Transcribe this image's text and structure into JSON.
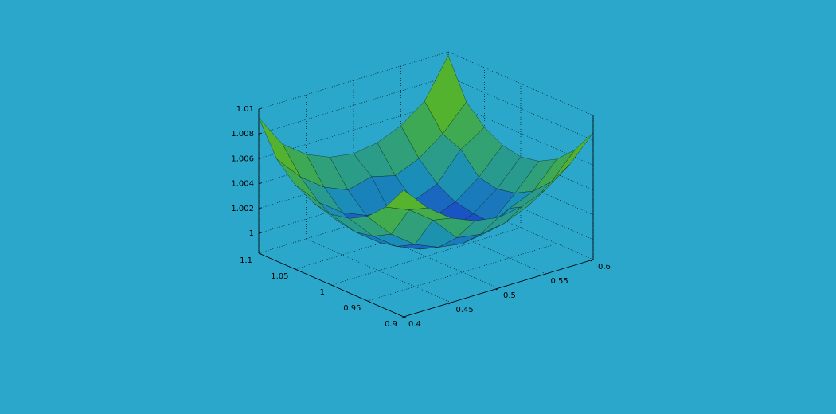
{
  "chart_data": {
    "type": "surface",
    "x": [
      0.4,
      0.425,
      0.45,
      0.475,
      0.5,
      0.525,
      0.55,
      0.575,
      0.6
    ],
    "y": [
      0.9,
      0.925,
      0.95,
      0.975,
      1,
      1.025,
      1.05,
      1.075,
      1.1
    ],
    "z": [
      [
        1.0086,
        1.0066,
        1.0052,
        1.0044,
        1.0041,
        1.0044,
        1.0052,
        1.0066,
        1.0086
      ],
      [
        1.0066,
        1.0058,
        1.0044,
        1.0024,
        1.0021,
        1.0024,
        1.0032,
        1.0046,
        1.0066
      ],
      [
        1.0052,
        1.0032,
        1.0018,
        1.001,
        1.0007,
        1.001,
        1.0024,
        1.0032,
        1.0052
      ],
      [
        1.0044,
        1.0024,
        1.001,
        1.0002,
        0.9999,
        1.0002,
        1.0006,
        1.0024,
        1.0044
      ],
      [
        1.0041,
        1.0021,
        1.0007,
        0.9999,
        0.9996,
        0.9999,
        1.0007,
        1.0021,
        1.0041
      ],
      [
        1.0044,
        1.0024,
        1.001,
        0.9998,
        0.9999,
        1.0002,
        1.001,
        1.0024,
        1.0044
      ],
      [
        1.0052,
        1.0032,
        1.0018,
        1.001,
        1.0007,
        1.001,
        1.0018,
        1.004,
        1.0052
      ],
      [
        1.0066,
        1.0046,
        1.0032,
        1.0024,
        1.0029,
        1.0024,
        1.0032,
        1.0046,
        1.0066
      ],
      [
        1.0093,
        1.0066,
        1.0052,
        1.0044,
        1.0041,
        1.0044,
        1.0052,
        1.0066,
        1.0097
      ]
    ],
    "xlim": [
      0.4,
      0.6
    ],
    "xticks": [
      0.4,
      0.45,
      0.5,
      0.55,
      0.6
    ],
    "ylim": [
      0.9,
      1.1
    ],
    "yticks": [
      0.9,
      0.95,
      1,
      1.05,
      1.1
    ],
    "zlim": [
      0.9984,
      1.01
    ],
    "zticks": [
      1,
      1.002,
      1.004,
      1.006,
      1.008,
      1.01
    ],
    "grid": true,
    "colormap": [
      "#1a35c8",
      "#1a8fb8",
      "#3aa85a",
      "#58b428",
      "#2e4a10"
    ]
  }
}
